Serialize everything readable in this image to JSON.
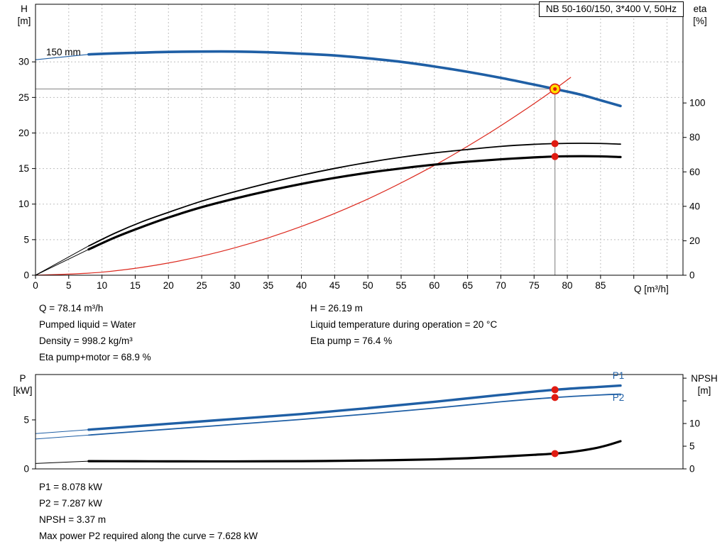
{
  "title_box": "NB 50-160/150, 3*400 V, 50Hz",
  "axis_titles": {
    "top_left": [
      "H",
      "[m]"
    ],
    "top_right": [
      "eta",
      "[%]"
    ],
    "x": "Q [m³/h]",
    "bottom_left": [
      "P",
      "[kW]"
    ],
    "bottom_right": [
      "NPSH",
      "[m]"
    ]
  },
  "info_top_left": [
    "Q = 78.14 m³/h",
    "Pumped liquid = Water",
    "Density = 998.2 kg/m³",
    "Eta pump+motor = 68.9 %"
  ],
  "info_top_right": [
    "H = 26.19 m",
    "Liquid temperature during operation = 20 °C",
    "Eta pump = 76.4 %"
  ],
  "info_bottom": [
    "P1 = 8.078 kW",
    "P2 = 7.287 kW",
    "NPSH = 3.37 m",
    "Max power P2 required along the curve = 7.628 kW"
  ],
  "colors": {
    "curve_blue": "#1f5fa5",
    "curve_red": "#dc291e",
    "marker_red": "#e01b12",
    "marker_yellow": "#ffe100",
    "grid": "#bfbfbf",
    "crosshair": "#909090",
    "black": "#000000"
  },
  "chart_data": [
    {
      "name": "hq-eta-chart",
      "type": "line",
      "title": "NB 50-160/150, 3*400 V, 50Hz",
      "xlabel": "Q [m³/h]",
      "ylabel_left": "H [m]",
      "ylabel_right": "eta [%]",
      "xlim": [
        0,
        97.4
      ],
      "ylim_left": [
        0,
        38.1
      ],
      "ylim_right": [
        0,
        157.3
      ],
      "grid_on": true,
      "xticks": [
        0,
        5,
        10,
        15,
        20,
        25,
        30,
        35,
        40,
        45,
        50,
        55,
        60,
        65,
        70,
        75,
        80,
        85
      ],
      "xticks_minor": [
        90,
        95
      ],
      "yticks_left": [
        0,
        5,
        10,
        15,
        20,
        25,
        30
      ],
      "yticks_right": [
        0,
        20,
        40,
        60,
        80,
        100
      ],
      "grid_x": [
        5,
        10,
        15,
        20,
        25,
        30,
        35,
        40,
        45,
        50,
        55,
        60,
        65,
        70,
        75,
        80,
        85,
        90,
        95
      ],
      "grid_y_left": [
        5,
        10,
        15,
        20,
        25,
        30
      ],
      "lines": [
        {
          "name": "duty-head-crosshair",
          "type": "h",
          "y": 26.19,
          "x0": 0,
          "x1": 78.14,
          "color": "#909090"
        },
        {
          "name": "duty-flow-crosshair",
          "type": "v",
          "x": 78.14,
          "y0": 0,
          "y1": 26.19,
          "color": "#909090"
        }
      ],
      "series": [
        {
          "name": "pump-curve-lead",
          "axis": "left",
          "color": "#1f5fa5",
          "width": 1.2,
          "x": [
            0,
            8
          ],
          "y": [
            30.3,
            31.05
          ]
        },
        {
          "name": "pump-curve-150mm",
          "axis": "left",
          "color": "#1f5fa5",
          "width": 3.6,
          "x": [
            8,
            12,
            16,
            20,
            25,
            30,
            35,
            40,
            45,
            50,
            55,
            60,
            65,
            70,
            75,
            78.14,
            82,
            85,
            88
          ],
          "y": [
            31.05,
            31.2,
            31.3,
            31.4,
            31.45,
            31.45,
            31.35,
            31.15,
            30.9,
            30.5,
            30.0,
            29.35,
            28.6,
            27.75,
            26.8,
            26.19,
            25.4,
            24.6,
            23.8
          ]
        },
        {
          "name": "system-curve",
          "axis": "left",
          "color": "#dc291e",
          "width": 1.2,
          "x": [
            0,
            10,
            20,
            30,
            40,
            50,
            60,
            68,
            74,
            78.14,
            80.5
          ],
          "y": [
            0,
            0.43,
            1.72,
            3.86,
            6.86,
            10.72,
            15.44,
            19.84,
            23.49,
            26.19,
            27.81
          ]
        },
        {
          "name": "eta-pump-curve-lead",
          "axis": "right",
          "color": "#000000",
          "width": 1,
          "x": [
            0,
            8
          ],
          "y": [
            0,
            17
          ]
        },
        {
          "name": "eta-pump-curve",
          "axis": "right",
          "color": "#000000",
          "width": 1.8,
          "x": [
            8,
            12,
            16,
            20,
            25,
            30,
            35,
            40,
            45,
            50,
            55,
            60,
            65,
            70,
            75,
            78.14,
            82,
            85,
            88
          ],
          "y": [
            17,
            24.5,
            31,
            36.5,
            43,
            48.5,
            53.5,
            58,
            62,
            65.5,
            68.5,
            71,
            73,
            74.8,
            76,
            76.4,
            76.6,
            76.5,
            76.1
          ]
        },
        {
          "name": "eta-pump-motor-curve-lead",
          "axis": "right",
          "color": "#000000",
          "width": 1,
          "x": [
            0,
            8
          ],
          "y": [
            0,
            15
          ]
        },
        {
          "name": "eta-pump-motor-curve",
          "axis": "right",
          "color": "#000000",
          "width": 3.2,
          "x": [
            8,
            12,
            16,
            20,
            25,
            30,
            35,
            40,
            45,
            50,
            55,
            60,
            65,
            70,
            75,
            78.14,
            82,
            85,
            88
          ],
          "y": [
            15,
            22,
            28,
            33.5,
            39.5,
            44.5,
            49,
            53,
            56.5,
            59.5,
            62,
            64.2,
            65.9,
            67.3,
            68.4,
            68.9,
            69.1,
            69.0,
            68.6
          ]
        }
      ],
      "markers": [
        {
          "name": "eta-pump-point",
          "type": "dot",
          "x": 78.14,
          "y": 76.4,
          "axis": "right",
          "color": "#e01b12"
        },
        {
          "name": "eta-pump-motor-point",
          "type": "dot",
          "x": 78.14,
          "y": 68.9,
          "axis": "right",
          "color": "#e01b12"
        },
        {
          "name": "duty-point",
          "type": "duty",
          "x": 78.14,
          "y": 26.19,
          "axis": "left",
          "fill": "#ffe100",
          "stroke": "#e01b12"
        }
      ],
      "annotations": [
        {
          "name": "impeller-size-label",
          "text": "150 mm",
          "x": 1.6,
          "y": 30.9,
          "axis": "left",
          "color": "#000000",
          "anchor": "start"
        }
      ]
    },
    {
      "name": "power-npsh-chart",
      "type": "line",
      "xlabel": "",
      "ylabel_left": "P [kW]",
      "ylabel_right": "NPSH [m]",
      "xlim": [
        0,
        97.4
      ],
      "ylim_left": [
        0,
        9.63
      ],
      "ylim_right": [
        0,
        20.8
      ],
      "grid_on": false,
      "yticks_left": [
        0,
        5
      ],
      "yticks_right": [
        0,
        5,
        10
      ],
      "yticks_right_minor": [
        15,
        20
      ],
      "series": [
        {
          "name": "p1-curve-lead",
          "axis": "left",
          "color": "#1f5fa5",
          "width": 1,
          "x": [
            0,
            8
          ],
          "y": [
            3.6,
            4.0
          ]
        },
        {
          "name": "p1-curve",
          "axis": "left",
          "color": "#1f5fa5",
          "width": 3.4,
          "x": [
            8,
            15,
            20,
            30,
            40,
            50,
            60,
            70,
            78.14,
            85,
            88
          ],
          "y": [
            4.0,
            4.35,
            4.6,
            5.1,
            5.6,
            6.2,
            6.85,
            7.55,
            8.078,
            8.38,
            8.5
          ]
        },
        {
          "name": "p2-curve-lead",
          "axis": "left",
          "color": "#1f5fa5",
          "width": 1,
          "x": [
            0,
            8
          ],
          "y": [
            3.05,
            3.45
          ]
        },
        {
          "name": "p2-curve",
          "axis": "left",
          "color": "#1f5fa5",
          "width": 1.8,
          "x": [
            8,
            15,
            20,
            30,
            40,
            50,
            60,
            70,
            78.14,
            85,
            88
          ],
          "y": [
            3.45,
            3.8,
            4.05,
            4.55,
            5.05,
            5.6,
            6.2,
            6.85,
            7.287,
            7.55,
            7.628
          ]
        },
        {
          "name": "npsh-curve-lead",
          "axis": "right",
          "color": "#000000",
          "width": 1,
          "x": [
            0,
            8
          ],
          "y": [
            1.2,
            1.7
          ]
        },
        {
          "name": "npsh-curve",
          "axis": "right",
          "color": "#000000",
          "width": 3.2,
          "x": [
            8,
            15,
            20,
            30,
            40,
            50,
            55,
            60,
            65,
            70,
            75,
            78.14,
            81,
            84,
            86,
            88
          ],
          "y": [
            1.7,
            1.68,
            1.66,
            1.65,
            1.7,
            1.85,
            1.95,
            2.1,
            2.35,
            2.7,
            3.1,
            3.37,
            3.8,
            4.5,
            5.2,
            6.1
          ]
        }
      ],
      "markers": [
        {
          "name": "p1-point",
          "type": "dot",
          "x": 78.14,
          "y": 8.078,
          "axis": "left",
          "color": "#e01b12"
        },
        {
          "name": "p2-point",
          "type": "dot",
          "x": 78.14,
          "y": 7.287,
          "axis": "left",
          "color": "#e01b12"
        },
        {
          "name": "npsh-point",
          "type": "dot",
          "x": 78.14,
          "y": 3.37,
          "axis": "right",
          "color": "#e01b12"
        }
      ],
      "annotations": [
        {
          "name": "p1-label",
          "text": "P1",
          "x": 86.8,
          "y": 9.2,
          "axis": "left",
          "color": "#1f5fa5",
          "anchor": "start"
        },
        {
          "name": "p2-label",
          "text": "P2",
          "x": 86.8,
          "y": 6.95,
          "axis": "left",
          "color": "#1f5fa5",
          "anchor": "start"
        }
      ]
    }
  ]
}
